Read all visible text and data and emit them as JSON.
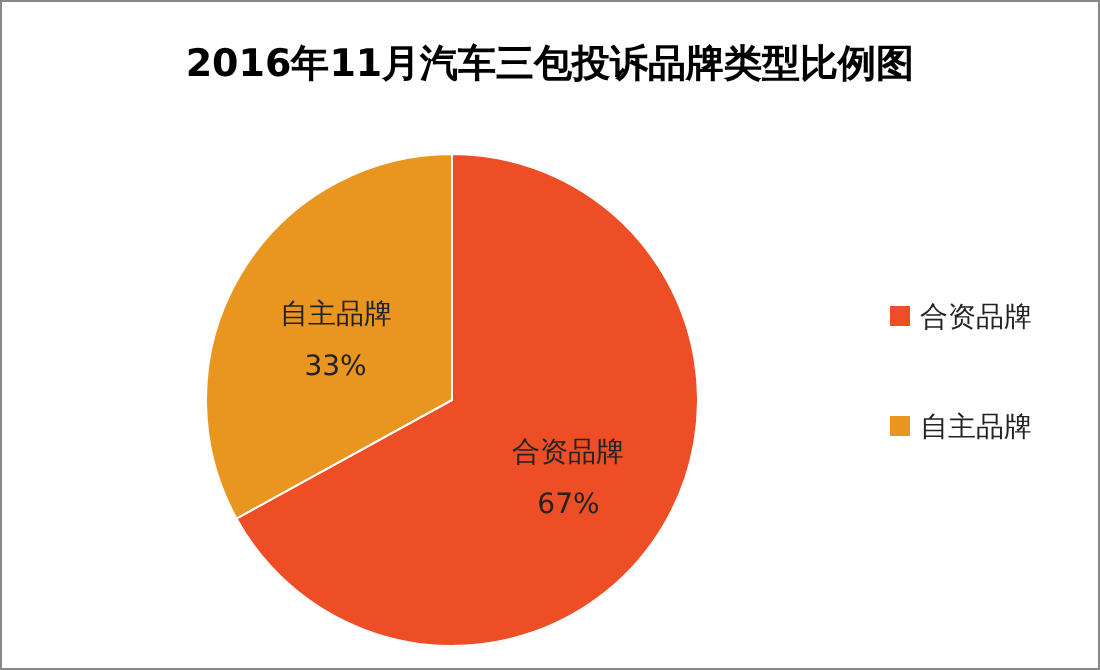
{
  "chart_data": {
    "type": "pie",
    "title": "2016年11月汽车三包投诉品牌类型比例图",
    "categories": [
      "合资品牌",
      "自主品牌"
    ],
    "values": [
      67,
      33
    ],
    "colors": [
      "#ee4e25",
      "#e8961f"
    ],
    "value_labels": [
      "67%",
      "33%"
    ],
    "legend": "right"
  }
}
